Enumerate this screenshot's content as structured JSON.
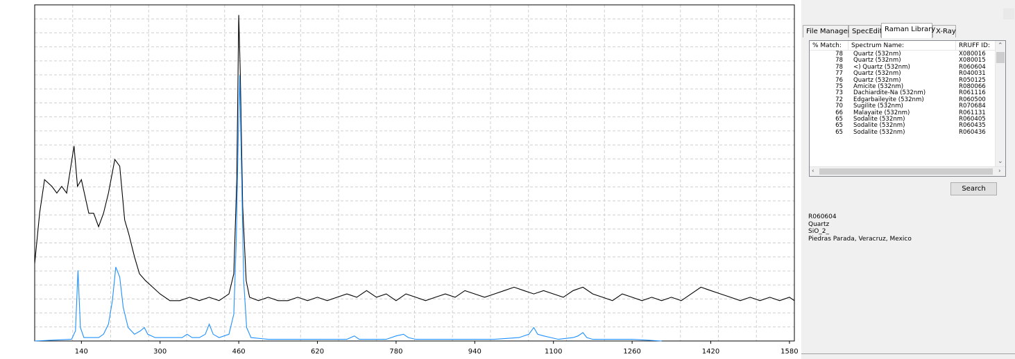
{
  "tabs": [
    {
      "label": "File Manager"
    },
    {
      "label": "SpecEdit"
    },
    {
      "label": "Raman Library"
    },
    {
      "label": "X-Ray"
    }
  ],
  "active_tab": "Raman Library",
  "table": {
    "headers": [
      "% Match:",
      "Spectrum Name:",
      "RRUFF ID:"
    ],
    "rows": [
      [
        "78",
        "Quartz  (532nm)",
        "X080016"
      ],
      [
        "78",
        "Quartz  (532nm)",
        "X080015"
      ],
      [
        "78",
        "<) Quartz  (532nm)",
        "R060604"
      ],
      [
        "77",
        "Quartz  (532nm)",
        "R040031"
      ],
      [
        "76",
        "Quartz  (532nm)",
        "R050125"
      ],
      [
        "75",
        "Amicite  (532nm)",
        "R080066"
      ],
      [
        "73",
        "Dachiardite-Na  (532nm)",
        "R061116"
      ],
      [
        "72",
        "Edgarbaileyite  (532nm)",
        "R060500"
      ],
      [
        "70",
        "Sugilite  (532nm)",
        "R070684"
      ],
      [
        "66",
        "Malayaite  (532nm)",
        "R061131"
      ],
      [
        "65",
        "Sodalite  (532nm)",
        "R060405"
      ],
      [
        "65",
        "Sodalite  (532nm)",
        "R060435"
      ],
      [
        "65",
        "Sodalite  (532nm)",
        "R060436"
      ]
    ]
  },
  "search_label": "Search",
  "info": {
    "id": "R060604",
    "mineral": "Quartz",
    "formula": "SiO_2_",
    "locality": "Piedras Parada, Veracruz, Mexico"
  },
  "chart_data": {
    "type": "line",
    "title": "",
    "xlabel": "",
    "ylabel": "",
    "xlim": [
      45,
      1590
    ],
    "ylim": [
      0,
      100
    ],
    "x_ticks": [
      140,
      300,
      460,
      620,
      780,
      940,
      1100,
      1260,
      1420,
      1580
    ],
    "grid": true,
    "colors": {
      "sample": "#000000",
      "reference": "#1e90ff"
    },
    "series": [
      {
        "color": "#000000",
        "points": [
          [
            45,
            23
          ],
          [
            55,
            38
          ],
          [
            65,
            48
          ],
          [
            80,
            46
          ],
          [
            90,
            44
          ],
          [
            100,
            46
          ],
          [
            110,
            44
          ],
          [
            125,
            58
          ],
          [
            132,
            46
          ],
          [
            140,
            48
          ],
          [
            155,
            38
          ],
          [
            165,
            38
          ],
          [
            175,
            34
          ],
          [
            185,
            38
          ],
          [
            195,
            44
          ],
          [
            208,
            54
          ],
          [
            218,
            52
          ],
          [
            228,
            36
          ],
          [
            236,
            32
          ],
          [
            248,
            25
          ],
          [
            258,
            20
          ],
          [
            270,
            18
          ],
          [
            285,
            16
          ],
          [
            300,
            14
          ],
          [
            320,
            12
          ],
          [
            340,
            12
          ],
          [
            360,
            13
          ],
          [
            380,
            12
          ],
          [
            400,
            13
          ],
          [
            420,
            12
          ],
          [
            440,
            14
          ],
          [
            450,
            20
          ],
          [
            456,
            48
          ],
          [
            460,
            97
          ],
          [
            463,
            80
          ],
          [
            468,
            40
          ],
          [
            475,
            18
          ],
          [
            482,
            13
          ],
          [
            500,
            12
          ],
          [
            520,
            13
          ],
          [
            540,
            12
          ],
          [
            560,
            12
          ],
          [
            580,
            13
          ],
          [
            600,
            12
          ],
          [
            620,
            13
          ],
          [
            640,
            12
          ],
          [
            660,
            13
          ],
          [
            680,
            14
          ],
          [
            700,
            13
          ],
          [
            720,
            15
          ],
          [
            740,
            13
          ],
          [
            760,
            14
          ],
          [
            780,
            12
          ],
          [
            800,
            14
          ],
          [
            820,
            13
          ],
          [
            840,
            12
          ],
          [
            860,
            13
          ],
          [
            880,
            14
          ],
          [
            900,
            13
          ],
          [
            920,
            15
          ],
          [
            940,
            14
          ],
          [
            960,
            13
          ],
          [
            980,
            14
          ],
          [
            1000,
            15
          ],
          [
            1020,
            16
          ],
          [
            1040,
            15
          ],
          [
            1060,
            14
          ],
          [
            1080,
            15
          ],
          [
            1100,
            14
          ],
          [
            1120,
            13
          ],
          [
            1140,
            15
          ],
          [
            1160,
            16
          ],
          [
            1180,
            14
          ],
          [
            1200,
            13
          ],
          [
            1220,
            12
          ],
          [
            1240,
            14
          ],
          [
            1260,
            13
          ],
          [
            1280,
            12
          ],
          [
            1300,
            13
          ],
          [
            1320,
            12
          ],
          [
            1340,
            13
          ],
          [
            1360,
            12
          ],
          [
            1380,
            14
          ],
          [
            1400,
            16
          ],
          [
            1420,
            15
          ],
          [
            1440,
            14
          ],
          [
            1460,
            13
          ],
          [
            1480,
            12
          ],
          [
            1500,
            13
          ],
          [
            1520,
            12
          ],
          [
            1540,
            13
          ],
          [
            1560,
            12
          ],
          [
            1580,
            13
          ],
          [
            1590,
            12
          ]
        ]
      },
      {
        "color": "#1e90ff",
        "points": [
          [
            45,
            0
          ],
          [
            120,
            0.5
          ],
          [
            128,
            3
          ],
          [
            133,
            21
          ],
          [
            138,
            4
          ],
          [
            145,
            1
          ],
          [
            160,
            1
          ],
          [
            175,
            1
          ],
          [
            185,
            2
          ],
          [
            195,
            5
          ],
          [
            203,
            12
          ],
          [
            210,
            22
          ],
          [
            218,
            19
          ],
          [
            225,
            10
          ],
          [
            235,
            4
          ],
          [
            248,
            2
          ],
          [
            260,
            3
          ],
          [
            268,
            4
          ],
          [
            275,
            2
          ],
          [
            290,
            1
          ],
          [
            310,
            1
          ],
          [
            330,
            1
          ],
          [
            345,
            1
          ],
          [
            355,
            2
          ],
          [
            365,
            1
          ],
          [
            380,
            1
          ],
          [
            392,
            2
          ],
          [
            400,
            5
          ],
          [
            408,
            2
          ],
          [
            420,
            1
          ],
          [
            440,
            2
          ],
          [
            450,
            8
          ],
          [
            455,
            30
          ],
          [
            459,
            60
          ],
          [
            462,
            79
          ],
          [
            465,
            55
          ],
          [
            470,
            18
          ],
          [
            476,
            4
          ],
          [
            485,
            1
          ],
          [
            520,
            0.5
          ],
          [
            580,
            0.5
          ],
          [
            640,
            0.5
          ],
          [
            680,
            0.5
          ],
          [
            695,
            1.5
          ],
          [
            705,
            0.5
          ],
          [
            760,
            0.5
          ],
          [
            780,
            1.5
          ],
          [
            795,
            2
          ],
          [
            805,
            1
          ],
          [
            820,
            0.5
          ],
          [
            900,
            0.5
          ],
          [
            980,
            0.5
          ],
          [
            1030,
            1
          ],
          [
            1050,
            2
          ],
          [
            1060,
            4
          ],
          [
            1068,
            2
          ],
          [
            1080,
            1.5
          ],
          [
            1095,
            1
          ],
          [
            1110,
            0.5
          ],
          [
            1140,
            1
          ],
          [
            1150,
            1.5
          ],
          [
            1160,
            2.5
          ],
          [
            1168,
            1
          ],
          [
            1180,
            0.5
          ],
          [
            1260,
            0.5
          ],
          [
            1320,
            0
          ]
        ]
      }
    ]
  }
}
